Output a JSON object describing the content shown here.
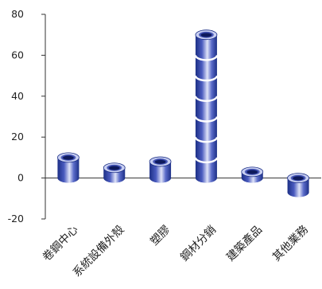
{
  "chart_data": {
    "type": "bar",
    "title": "",
    "xlabel": "",
    "ylabel": "",
    "categories": [
      "卷鋼中心",
      "系統設備外殼",
      "塑膠",
      "鋼材分銷",
      "建築產品",
      "其他業務"
    ],
    "values": [
      10,
      5,
      8,
      70,
      3,
      -7
    ],
    "ylim": [
      -20,
      80
    ],
    "yticks": [
      -20,
      0,
      20,
      40,
      60,
      80
    ],
    "grid": false,
    "legend": "none",
    "bar_style": "stacked-cylinder",
    "colors": {
      "bar_dark": "#1c2f86",
      "bar_mid": "#5566c6",
      "bar_light": "#c9d0f2",
      "ring_line": "#ffffff",
      "axis": "#333333"
    }
  }
}
